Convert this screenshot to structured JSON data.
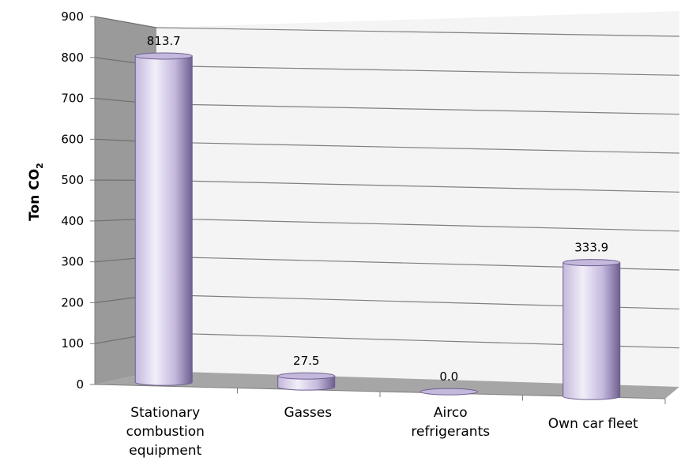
{
  "chart_data": {
    "type": "bar",
    "style": "3d-cylinder",
    "title": "",
    "xlabel": "",
    "ylabel": "Ton CO",
    "ylabel_subscript": "2",
    "ylim": [
      0,
      900
    ],
    "yticks": [
      "0",
      "100",
      "200",
      "300",
      "400",
      "500",
      "600",
      "700",
      "800",
      "900"
    ],
    "categories": [
      [
        "Stationary",
        "combustion",
        "equipment"
      ],
      [
        "Gasses"
      ],
      [
        "Airco",
        "refrigerants"
      ],
      [
        "Own car fleet"
      ]
    ],
    "values": [
      813.7,
      27.5,
      0.0,
      333.9
    ],
    "data_labels": [
      "813.7",
      "27.5",
      "0.0",
      "333.9"
    ],
    "grid": true,
    "legend": "none",
    "colors": {
      "bar_light": "#f2eef9",
      "bar_mid": "#c4b8dc",
      "bar_dark": "#6e5f90",
      "back_wall": "#f4f4f4",
      "side_wall": "#9a9a9a",
      "floor": "#a6a6a6",
      "grid": "#7f7f7f"
    }
  }
}
